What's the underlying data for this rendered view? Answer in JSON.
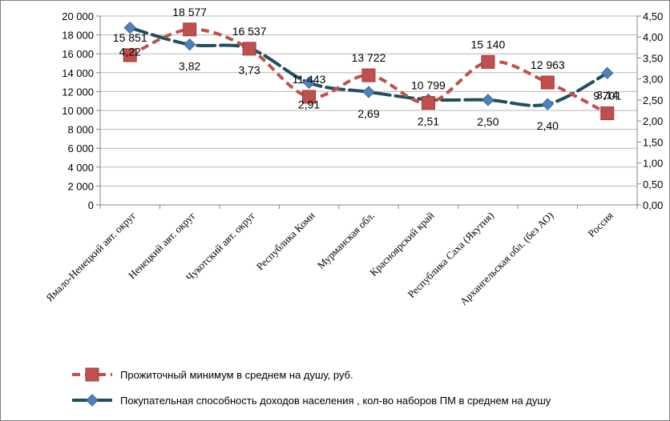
{
  "chart_data": {
    "type": "line",
    "categories": [
      "Ямало-Ненецкий авт. округ",
      "Ненецкий авт. округ",
      "Чукотский авт. округ",
      "Республика Коми",
      "Мурманская обл.",
      "Красноярский край",
      "Республика Саха (Якутия)",
      "Архангельская обл. (без АО)",
      "Россия"
    ],
    "series": [
      {
        "name": "Прожиточный минимум в среднем на душу, руб.",
        "axis": "left",
        "color": "#c0504d",
        "values": [
          15851,
          18577,
          16537,
          11443,
          13722,
          10799,
          15140,
          12963,
          9701
        ],
        "labels": [
          "15 851",
          "18 577",
          "16 537",
          "11 443",
          "13 722",
          "10 799",
          "15 140",
          "12 963",
          "9 701"
        ]
      },
      {
        "name": "Покупательная способность  доходов населения , кол-во наборов ПМ в среднем на душу",
        "axis": "right",
        "color": "#1f4e5f",
        "values": [
          4.22,
          3.82,
          3.73,
          2.91,
          2.69,
          2.51,
          2.5,
          2.4,
          3.14
        ],
        "labels": [
          "4,22",
          "3,82",
          "3,73",
          "2,91",
          "2,69",
          "2,51",
          "2,50",
          "2,40",
          "3,14"
        ]
      }
    ],
    "y_left": {
      "min": 0,
      "max": 20000,
      "ticks": [
        "0",
        "2 000",
        "4 000",
        "6 000",
        "8 000",
        "10 000",
        "12 000",
        "14 000",
        "16 000",
        "18 000",
        "20 000"
      ]
    },
    "y_right": {
      "min": 0,
      "max": 4.5,
      "ticks": [
        "0,00",
        "0,50",
        "1,00",
        "1,50",
        "2,00",
        "2,50",
        "3,00",
        "3,50",
        "4,00",
        "4,50"
      ]
    },
    "legend_position": "bottom"
  }
}
